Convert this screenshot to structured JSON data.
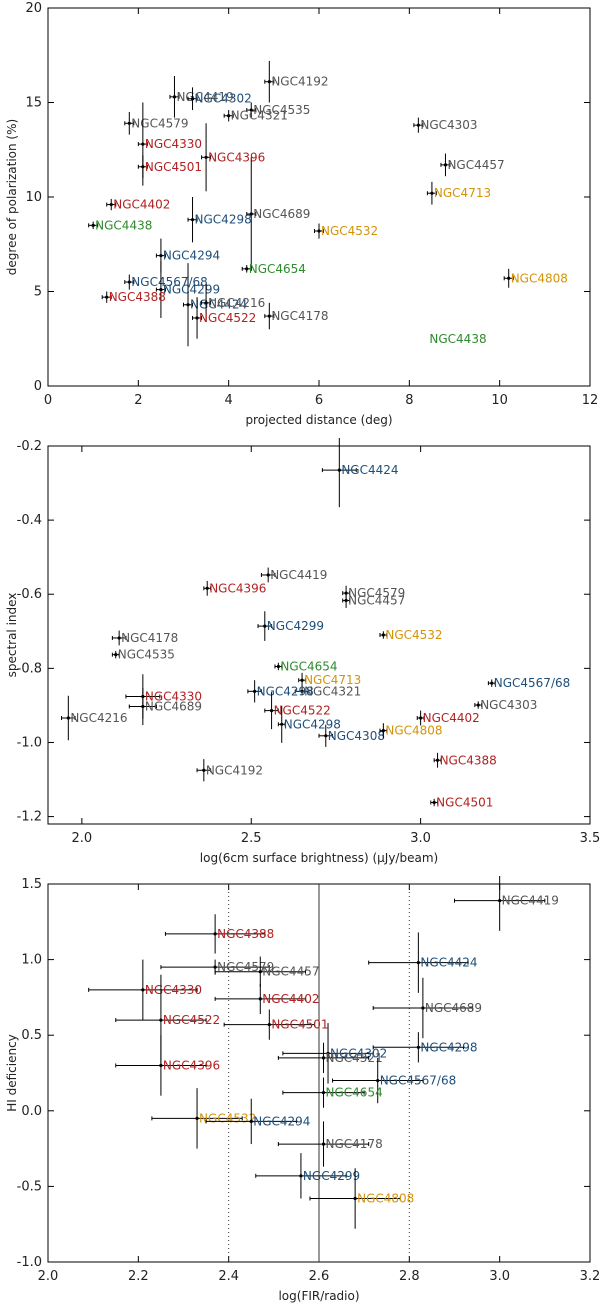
{
  "colors": {
    "gray": "#555555",
    "blue": "#1f4e79",
    "red": "#b22222",
    "green": "#2e8b2e",
    "orange": "#d4940a"
  },
  "chart_data": [
    {
      "type": "scatter",
      "xlabel": "projected distance (deg)",
      "ylabel": "degree of polarization (%)",
      "xlim": [
        0,
        12
      ],
      "ylim": [
        0,
        20
      ],
      "xticks": [
        "0",
        "2",
        "4",
        "6",
        "8",
        "10",
        "12"
      ],
      "yticks": [
        "0",
        "5",
        "10",
        "15",
        "20"
      ],
      "points": [
        {
          "name": "NGC4419",
          "x": 2.8,
          "y": 15.3,
          "xerr": 0.1,
          "yerr": 1.1,
          "color": "gray"
        },
        {
          "name": "NGC4192",
          "x": 4.9,
          "y": 16.1,
          "xerr": 0.1,
          "yerr": 1.1,
          "color": "gray"
        },
        {
          "name": "NGC4302",
          "x": 3.2,
          "y": 15.2,
          "xerr": 0.1,
          "yerr": 0.6,
          "color": "blue"
        },
        {
          "name": "NGC4535",
          "x": 4.5,
          "y": 14.6,
          "xerr": 0.1,
          "yerr": 0.4,
          "color": "gray"
        },
        {
          "name": "NGC4321",
          "x": 4.0,
          "y": 14.3,
          "xerr": 0.1,
          "yerr": 0.3,
          "color": "gray"
        },
        {
          "name": "NGC4579",
          "x": 1.8,
          "y": 13.9,
          "xerr": 0.1,
          "yerr": 0.6,
          "color": "gray"
        },
        {
          "name": "NGC4303",
          "x": 8.2,
          "y": 13.8,
          "xerr": 0.1,
          "yerr": 0.4,
          "color": "gray"
        },
        {
          "name": "NGC4330",
          "x": 2.1,
          "y": 12.8,
          "xerr": 0.1,
          "yerr": 2.2,
          "color": "red"
        },
        {
          "name": "NGC4396",
          "x": 3.5,
          "y": 12.1,
          "xerr": 0.1,
          "yerr": 1.8,
          "color": "red"
        },
        {
          "name": "NGC4501",
          "x": 2.1,
          "y": 11.6,
          "xerr": 0.1,
          "yerr": 0.6,
          "color": "red"
        },
        {
          "name": "NGC4457",
          "x": 8.8,
          "y": 11.7,
          "xerr": 0.1,
          "yerr": 0.6,
          "color": "gray"
        },
        {
          "name": "NGC4713",
          "x": 8.5,
          "y": 10.2,
          "xerr": 0.1,
          "yerr": 0.6,
          "color": "orange"
        },
        {
          "name": "NGC4402",
          "x": 1.4,
          "y": 9.6,
          "xerr": 0.1,
          "yerr": 0.3,
          "color": "red"
        },
        {
          "name": "NGC4438",
          "x": 1.0,
          "y": 8.5,
          "xerr": 0.1,
          "yerr": 0.2,
          "color": "green"
        },
        {
          "name": "NGC4689",
          "x": 4.5,
          "y": 9.1,
          "xerr": 0.1,
          "yerr": 3.0,
          "color": "gray"
        },
        {
          "name": "NGC4298",
          "x": 3.2,
          "y": 8.8,
          "xerr": 0.1,
          "yerr": 1.2,
          "color": "blue"
        },
        {
          "name": "NGC4532",
          "x": 6.0,
          "y": 8.2,
          "xerr": 0.1,
          "yerr": 0.4,
          "color": "orange"
        },
        {
          "name": "NGC4294",
          "x": 2.5,
          "y": 6.9,
          "xerr": 0.1,
          "yerr": 0.9,
          "color": "blue"
        },
        {
          "name": "NGC4654",
          "x": 4.4,
          "y": 6.2,
          "xerr": 0.1,
          "yerr": 0.2,
          "color": "green"
        },
        {
          "name": "NGC4567/68",
          "x": 1.8,
          "y": 5.5,
          "xerr": 0.1,
          "yerr": 0.4,
          "color": "blue"
        },
        {
          "name": "NGC4808",
          "x": 10.2,
          "y": 5.7,
          "xerr": 0.1,
          "yerr": 0.5,
          "color": "orange"
        },
        {
          "name": "NGC4299",
          "x": 2.5,
          "y": 5.1,
          "xerr": 0.1,
          "yerr": 1.5,
          "color": "blue"
        },
        {
          "name": "NGC4388",
          "x": 1.3,
          "y": 4.7,
          "xerr": 0.1,
          "yerr": 0.3,
          "color": "red"
        },
        {
          "name": "NGC4424",
          "x": 3.1,
          "y": 4.3,
          "xerr": 0.1,
          "yerr": 2.2,
          "color": "blue"
        },
        {
          "name": "NGC4216",
          "x": 3.5,
          "y": 4.4,
          "xerr": 0.1,
          "yerr": 1.0,
          "color": "gray"
        },
        {
          "name": "NGC4522",
          "x": 3.3,
          "y": 3.6,
          "xerr": 0.1,
          "yerr": 1.1,
          "color": "red"
        },
        {
          "name": "NGC4178",
          "x": 4.9,
          "y": 3.7,
          "xerr": 0.1,
          "yerr": 0.7,
          "color": "gray"
        },
        {
          "name": "NGC4438",
          "x": 8.4,
          "y": 2.5,
          "xerr": 0,
          "yerr": 0,
          "color": "green",
          "noMark": true
        }
      ]
    },
    {
      "type": "scatter",
      "xlabel": "log(6cm surface brightness) (µJy/beam)",
      "ylabel": "spectral index",
      "xlim": [
        1.9,
        3.5
      ],
      "ylim": [
        -1.22,
        -0.2
      ],
      "xticks": [
        "2.0",
        "2.5",
        "3.0",
        "3.5"
      ],
      "yticks": [
        "-1.2",
        "-1.0",
        "-0.8",
        "-0.6",
        "-0.4",
        "-0.2"
      ],
      "points": [
        {
          "name": "NGC4424",
          "x": 2.76,
          "y": -0.265,
          "xerr": 0.05,
          "yerr": 0.1,
          "color": "blue"
        },
        {
          "name": "NGC4419",
          "x": 2.55,
          "y": -0.548,
          "xerr": 0.02,
          "yerr": 0.02,
          "color": "gray"
        },
        {
          "name": "NGC4396",
          "x": 2.37,
          "y": -0.584,
          "xerr": 0.01,
          "yerr": 0.02,
          "color": "red"
        },
        {
          "name": "NGC4579",
          "x": 2.78,
          "y": -0.597,
          "xerr": 0.01,
          "yerr": 0.02,
          "color": "gray"
        },
        {
          "name": "NGC4457",
          "x": 2.78,
          "y": -0.617,
          "xerr": 0.01,
          "yerr": 0.02,
          "color": "gray"
        },
        {
          "name": "NGC4299",
          "x": 2.54,
          "y": -0.686,
          "xerr": 0.02,
          "yerr": 0.04,
          "color": "blue"
        },
        {
          "name": "NGC4532",
          "x": 2.89,
          "y": -0.71,
          "xerr": 0.01,
          "yerr": 0.01,
          "color": "orange"
        },
        {
          "name": "NGC4178",
          "x": 2.11,
          "y": -0.718,
          "xerr": 0.02,
          "yerr": 0.02,
          "color": "gray"
        },
        {
          "name": "NGC4535",
          "x": 2.1,
          "y": -0.763,
          "xerr": 0.01,
          "yerr": 0.01,
          "color": "gray"
        },
        {
          "name": "NGC4654",
          "x": 2.58,
          "y": -0.795,
          "xerr": 0.01,
          "yerr": 0.01,
          "color": "green"
        },
        {
          "name": "NGC4713",
          "x": 2.65,
          "y": -0.832,
          "xerr": 0.01,
          "yerr": 0.02,
          "color": "orange"
        },
        {
          "name": "NGC4567/68",
          "x": 3.21,
          "y": -0.84,
          "xerr": 0.01,
          "yerr": 0.01,
          "color": "blue"
        },
        {
          "name": "NGC4321",
          "x": 2.65,
          "y": -0.862,
          "xerr": 0.02,
          "yerr": 0.01,
          "color": "gray"
        },
        {
          "name": "NGC4298",
          "x": 2.51,
          "y": -0.862,
          "xerr": 0.02,
          "yerr": 0.03,
          "color": "blue"
        },
        {
          "name": "NGC4330",
          "x": 2.18,
          "y": -0.876,
          "xerr": 0.05,
          "yerr": 0.06,
          "color": "red"
        },
        {
          "name": "NGC4689",
          "x": 2.18,
          "y": -0.903,
          "xerr": 0.04,
          "yerr": 0.05,
          "color": "gray"
        },
        {
          "name": "NGC4303",
          "x": 3.17,
          "y": -0.899,
          "xerr": 0.01,
          "yerr": 0.01,
          "color": "gray"
        },
        {
          "name": "NGC4522",
          "x": 2.56,
          "y": -0.914,
          "xerr": 0.02,
          "yerr": 0.05,
          "color": "red"
        },
        {
          "name": "NGC4216",
          "x": 1.96,
          "y": -0.934,
          "xerr": 0.02,
          "yerr": 0.06,
          "color": "gray"
        },
        {
          "name": "NGC4402",
          "x": 3.0,
          "y": -0.934,
          "xerr": 0.01,
          "yerr": 0.02,
          "color": "red"
        },
        {
          "name": "NGC4298",
          "x": 2.59,
          "y": -0.951,
          "xerr": 0.01,
          "yerr": 0.05,
          "color": "blue"
        },
        {
          "name": "NGC4308",
          "x": 2.72,
          "y": -0.982,
          "xerr": 0.02,
          "yerr": 0.03,
          "color": "blue"
        },
        {
          "name": "NGC4808",
          "x": 2.89,
          "y": -0.968,
          "xerr": 0.01,
          "yerr": 0.02,
          "color": "orange"
        },
        {
          "name": "NGC4388",
          "x": 3.05,
          "y": -1.048,
          "xerr": 0.01,
          "yerr": 0.02,
          "color": "red"
        },
        {
          "name": "NGC4192",
          "x": 2.36,
          "y": -1.075,
          "xerr": 0.02,
          "yerr": 0.03,
          "color": "gray"
        },
        {
          "name": "NGC4501",
          "x": 3.04,
          "y": -1.162,
          "xerr": 0.01,
          "yerr": 0.01,
          "color": "red"
        }
      ]
    },
    {
      "type": "scatter",
      "xlabel": "log(FIR/radio)",
      "ylabel": "HI deficiency",
      "xlim": [
        2.0,
        3.2
      ],
      "ylim": [
        -1.0,
        1.5
      ],
      "xticks": [
        "2.0",
        "2.2",
        "2.4",
        "2.6",
        "2.8",
        "3.0",
        "3.2"
      ],
      "yticks": [
        "-1.0",
        "-0.5",
        "0.0",
        "0.5",
        "1.0",
        "1.5"
      ],
      "vlines": [
        {
          "x": 2.4,
          "style": "dotted"
        },
        {
          "x": 2.8,
          "style": "dotted"
        },
        {
          "x": 2.6,
          "style": "solid"
        }
      ],
      "points": [
        {
          "name": "NGC4419",
          "x": 3.0,
          "y": 1.39,
          "xerr": 0.1,
          "yerr": 0.2,
          "color": "gray"
        },
        {
          "name": "NGC4388",
          "x": 2.37,
          "y": 1.17,
          "xerr": 0.11,
          "yerr": 0.13,
          "color": "red"
        },
        {
          "name": "NGC4424",
          "x": 2.82,
          "y": 0.98,
          "xerr": 0.11,
          "yerr": 0.2,
          "color": "blue"
        },
        {
          "name": "NGC4579",
          "x": 2.37,
          "y": 0.95,
          "xerr": 0.12,
          "yerr": 0.05,
          "color": "gray"
        },
        {
          "name": "NGC4457",
          "x": 2.47,
          "y": 0.92,
          "xerr": 0.1,
          "yerr": 0.1,
          "color": "gray"
        },
        {
          "name": "NGC4330",
          "x": 2.21,
          "y": 0.8,
          "xerr": 0.12,
          "yerr": 0.2,
          "color": "red"
        },
        {
          "name": "NGC4402",
          "x": 2.47,
          "y": 0.74,
          "xerr": 0.1,
          "yerr": 0.1,
          "color": "red"
        },
        {
          "name": "NGC4689",
          "x": 2.83,
          "y": 0.68,
          "xerr": 0.11,
          "yerr": 0.2,
          "color": "gray"
        },
        {
          "name": "NGC4522",
          "x": 2.25,
          "y": 0.6,
          "xerr": 0.1,
          "yerr": 0.3,
          "color": "red"
        },
        {
          "name": "NGC4501",
          "x": 2.49,
          "y": 0.57,
          "xerr": 0.1,
          "yerr": 0.1,
          "color": "red"
        },
        {
          "name": "NGC4298",
          "x": 2.82,
          "y": 0.42,
          "xerr": 0.1,
          "yerr": 0.1,
          "color": "blue"
        },
        {
          "name": "NGC4302",
          "x": 2.62,
          "y": 0.38,
          "xerr": 0.1,
          "yerr": 0.2,
          "color": "blue"
        },
        {
          "name": "NGC4321",
          "x": 2.61,
          "y": 0.35,
          "xerr": 0.1,
          "yerr": 0.1,
          "color": "gray"
        },
        {
          "name": "NGC4396",
          "x": 2.25,
          "y": 0.3,
          "xerr": 0.1,
          "yerr": 0.2,
          "color": "red"
        },
        {
          "name": "NGC4567/68",
          "x": 2.73,
          "y": 0.2,
          "xerr": 0.1,
          "yerr": 0.15,
          "color": "blue"
        },
        {
          "name": "NGC4654",
          "x": 2.61,
          "y": 0.12,
          "xerr": 0.09,
          "yerr": 0.1,
          "color": "green"
        },
        {
          "name": "NGC4532",
          "x": 2.33,
          "y": -0.05,
          "xerr": 0.1,
          "yerr": 0.2,
          "color": "orange"
        },
        {
          "name": "NGC4294",
          "x": 2.45,
          "y": -0.07,
          "xerr": 0.1,
          "yerr": 0.15,
          "color": "blue"
        },
        {
          "name": "NGC4178",
          "x": 2.61,
          "y": -0.22,
          "xerr": 0.1,
          "yerr": 0.15,
          "color": "gray"
        },
        {
          "name": "NGC4299",
          "x": 2.56,
          "y": -0.43,
          "xerr": 0.1,
          "yerr": 0.15,
          "color": "blue"
        },
        {
          "name": "NGC4808",
          "x": 2.68,
          "y": -0.58,
          "xerr": 0.1,
          "yerr": 0.2,
          "color": "orange"
        }
      ]
    }
  ]
}
